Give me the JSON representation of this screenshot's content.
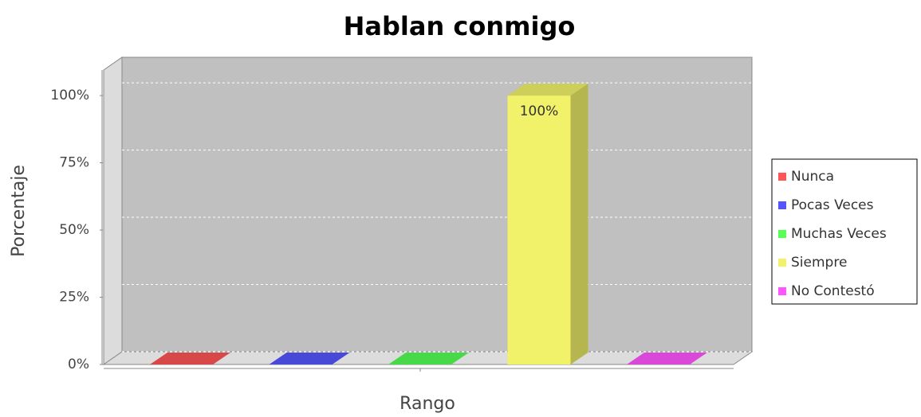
{
  "chart_data": {
    "type": "bar3d",
    "title": "Hablan conmigo",
    "x_label": "Rango",
    "y_label": "Porcentaje",
    "categories": [
      null
    ],
    "series": [
      {
        "name": "Nunca",
        "color": "#ff5555",
        "values": [
          0
        ]
      },
      {
        "name": "Pocas Veces",
        "color": "#5555ff",
        "values": [
          0
        ]
      },
      {
        "name": "Muchas Veces",
        "color": "#55ff55",
        "values": [
          0
        ]
      },
      {
        "name": "Siempre",
        "color": "#f2f26a",
        "values": [
          100
        ],
        "value_labels": [
          "100%"
        ]
      },
      {
        "name": "No Contestó",
        "color": "#ff55ff",
        "values": [
          0
        ]
      }
    ],
    "ylim": [
      0,
      109.5
    ],
    "yticks": [
      {
        "value": 0,
        "label": "0%"
      },
      {
        "value": 25,
        "label": "25%"
      },
      {
        "value": 50,
        "label": "50%"
      },
      {
        "value": 75,
        "label": "75%"
      },
      {
        "value": 100,
        "label": "100%"
      }
    ],
    "grid": true,
    "legend": "right"
  }
}
